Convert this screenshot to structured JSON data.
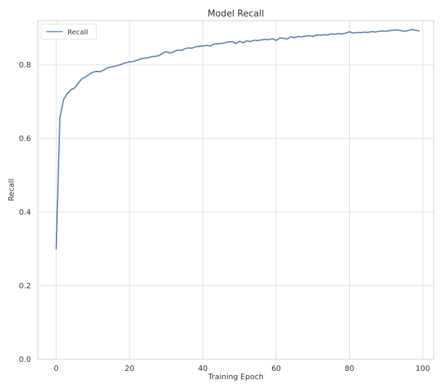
{
  "chart_data": {
    "type": "line",
    "title": "Model Recall",
    "xlabel": "Training Epoch",
    "ylabel": "Recall",
    "xlim": [
      -5,
      103
    ],
    "ylim": [
      0.0,
      0.92
    ],
    "xticks": [
      0,
      20,
      40,
      60,
      80,
      100
    ],
    "yticks": [
      0.0,
      0.2,
      0.4,
      0.6,
      0.8
    ],
    "xtick_labels": [
      "0",
      "20",
      "40",
      "60",
      "80",
      "100"
    ],
    "ytick_labels": [
      "0.0",
      "0.2",
      "0.4",
      "0.6",
      "0.8"
    ],
    "grid": true,
    "legend": {
      "position": "top-left",
      "entries": [
        "Recall"
      ]
    },
    "colors": {
      "series": "#5B7DB1",
      "grid": "#DDDDDD",
      "axes_edge": "#CCCCCC"
    },
    "series": [
      {
        "name": "Recall",
        "x": [
          0,
          1,
          2,
          3,
          4,
          5,
          6,
          7,
          8,
          9,
          10,
          11,
          12,
          13,
          14,
          15,
          16,
          17,
          18,
          19,
          20,
          21,
          22,
          23,
          24,
          25,
          26,
          27,
          28,
          29,
          30,
          31,
          32,
          33,
          34,
          35,
          36,
          37,
          38,
          39,
          40,
          41,
          42,
          43,
          44,
          45,
          46,
          47,
          48,
          49,
          50,
          51,
          52,
          53,
          54,
          55,
          56,
          57,
          58,
          59,
          60,
          61,
          62,
          63,
          64,
          65,
          66,
          67,
          68,
          69,
          70,
          71,
          72,
          73,
          74,
          75,
          76,
          77,
          78,
          79,
          80,
          81,
          82,
          83,
          84,
          85,
          86,
          87,
          88,
          89,
          90,
          91,
          92,
          93,
          94,
          95,
          96,
          97,
          98,
          99
        ],
        "values": [
          0.3,
          0.655,
          0.705,
          0.722,
          0.732,
          0.737,
          0.75,
          0.762,
          0.767,
          0.774,
          0.78,
          0.782,
          0.781,
          0.786,
          0.792,
          0.794,
          0.796,
          0.799,
          0.802,
          0.806,
          0.808,
          0.809,
          0.812,
          0.816,
          0.818,
          0.819,
          0.822,
          0.823,
          0.825,
          0.831,
          0.836,
          0.832,
          0.835,
          0.84,
          0.839,
          0.843,
          0.846,
          0.845,
          0.849,
          0.85,
          0.851,
          0.853,
          0.851,
          0.856,
          0.857,
          0.858,
          0.86,
          0.862,
          0.863,
          0.858,
          0.864,
          0.86,
          0.865,
          0.863,
          0.867,
          0.866,
          0.868,
          0.869,
          0.868,
          0.871,
          0.866,
          0.873,
          0.872,
          0.87,
          0.876,
          0.874,
          0.877,
          0.876,
          0.878,
          0.879,
          0.877,
          0.881,
          0.88,
          0.882,
          0.881,
          0.884,
          0.883,
          0.885,
          0.884,
          0.886,
          0.89,
          0.886,
          0.888,
          0.887,
          0.889,
          0.888,
          0.89,
          0.889,
          0.891,
          0.892,
          0.891,
          0.893,
          0.894,
          0.895,
          0.893,
          0.891,
          0.893,
          0.896,
          0.894,
          0.892
        ]
      }
    ]
  }
}
